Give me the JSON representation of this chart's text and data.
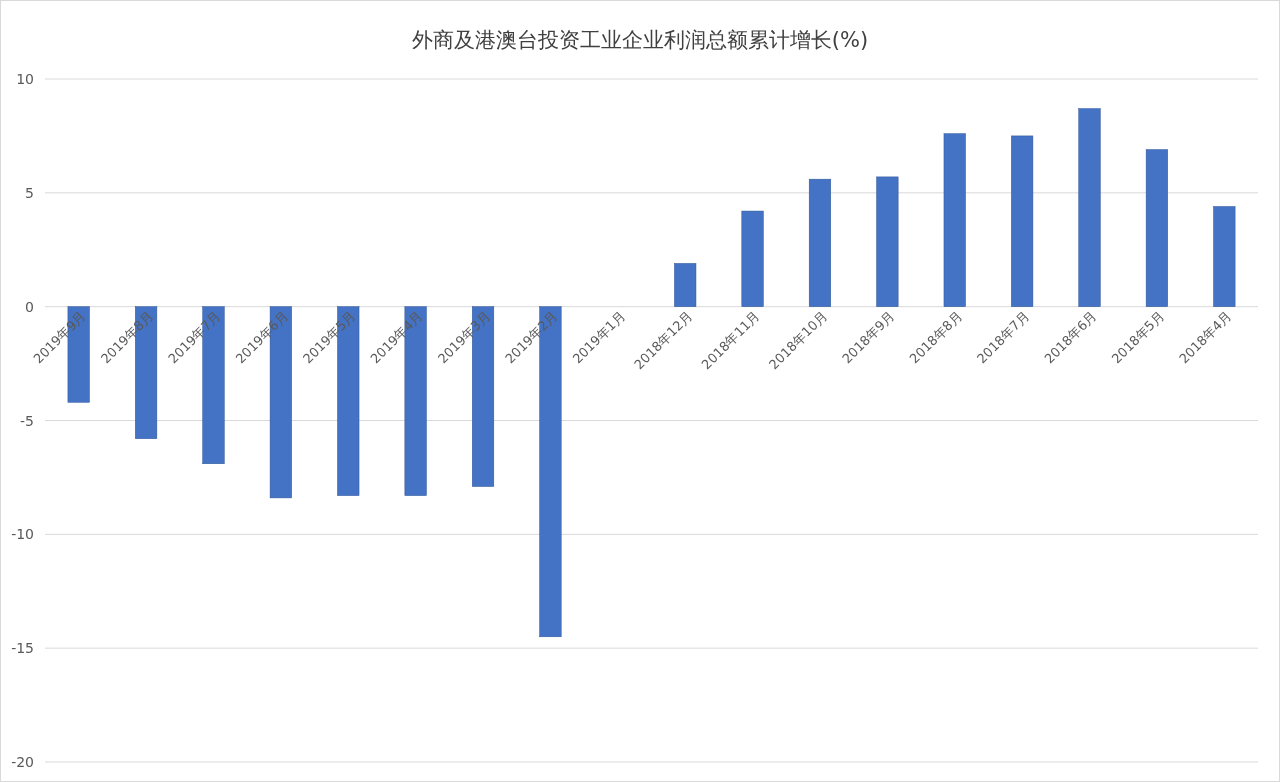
{
  "chart_data": {
    "type": "bar",
    "title": "外商及港澳台投资工业企业利润总额累计增长(%)",
    "categories": [
      "2019年9月",
      "2019年8月",
      "2019年7月",
      "2019年6月",
      "2019年5月",
      "2019年4月",
      "2019年3月",
      "2019年2月",
      "2019年1月",
      "2018年12月",
      "2018年11月",
      "2018年10月",
      "2018年9月",
      "2018年8月",
      "2018年7月",
      "2018年6月",
      "2018年5月",
      "2018年4月"
    ],
    "values": [
      -4.2,
      -5.8,
      -6.9,
      -8.4,
      -8.3,
      -8.3,
      -7.9,
      -14.5,
      null,
      1.9,
      4.2,
      5.6,
      5.7,
      7.6,
      7.5,
      8.7,
      6.9,
      4.4
    ],
    "color": "#4472c4",
    "ylim": [
      -20,
      10
    ],
    "yticks": [
      -20,
      -15,
      -10,
      -5,
      0,
      5,
      10
    ],
    "grid": "y"
  }
}
